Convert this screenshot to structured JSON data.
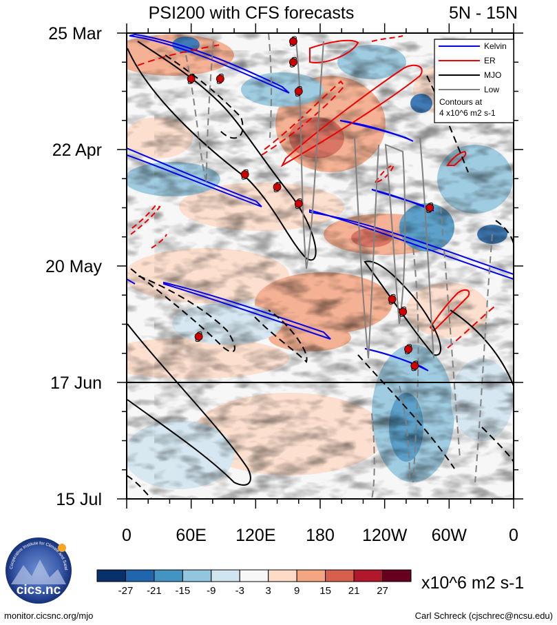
{
  "chart_data": {
    "type": "heatmap",
    "title": "PSI200 with CFS forecasts",
    "region": "5N - 15N",
    "x_ticks": [
      "0",
      "60E",
      "120E",
      "180",
      "120W",
      "60W",
      "0"
    ],
    "y_ticks": [
      "25 Mar",
      "22 Apr",
      "20 May",
      "17 Jun",
      "15 Jul"
    ],
    "forecast_start_line": "17 Jun",
    "legend": {
      "entries": [
        {
          "label": "Kelvin",
          "color": "#0000ee"
        },
        {
          "label": "ER",
          "color": "#ee0000"
        },
        {
          "label": "MJO",
          "color": "#000000"
        },
        {
          "label": "Low",
          "color": "#808080"
        }
      ],
      "note_line1": "Contours at",
      "note_line2": "4 x10^6 m2 s-1"
    },
    "colorbar": {
      "levels": [
        "-27",
        "-21",
        "-15",
        "-9",
        "-3",
        "3",
        "9",
        "15",
        "21",
        "27"
      ],
      "colors": [
        "#08306b",
        "#2166ac",
        "#4393c3",
        "#92c5de",
        "#d1e5f0",
        "#f7f7f7",
        "#fddbc7",
        "#f4a582",
        "#d6604d",
        "#b2182b",
        "#67001f"
      ],
      "units": "x10^6 m2 s-1"
    },
    "storm_markers": [
      {
        "lon": 60,
        "date": "5 Apr"
      },
      {
        "lon": 87,
        "date": "5 Apr"
      },
      {
        "lon": 155,
        "date": "27 Mar"
      },
      {
        "lon": 155,
        "date": "1 Apr"
      },
      {
        "lon": 160,
        "date": "8 Apr"
      },
      {
        "lon": 110,
        "date": "28 Apr"
      },
      {
        "lon": 140,
        "date": "1 May"
      },
      {
        "lon": 160,
        "date": "5 May"
      },
      {
        "lon": 282,
        "date": "6 May"
      },
      {
        "lon": 247,
        "date": "28 May"
      },
      {
        "lon": 257,
        "date": "31 May"
      },
      {
        "lon": 262,
        "date": "9 Jun"
      },
      {
        "lon": 268,
        "date": "13 Jun"
      },
      {
        "lon": 67,
        "date": "6 Jun"
      }
    ]
  },
  "logo": {
    "name": "cics.nc",
    "ring_text": "Cooperative Institute for Climate and Satellites"
  },
  "footer": {
    "left": "monitor.cicsnc.org/mjo",
    "right": "Carl Schreck (cjschrec@ncsu.edu)"
  }
}
